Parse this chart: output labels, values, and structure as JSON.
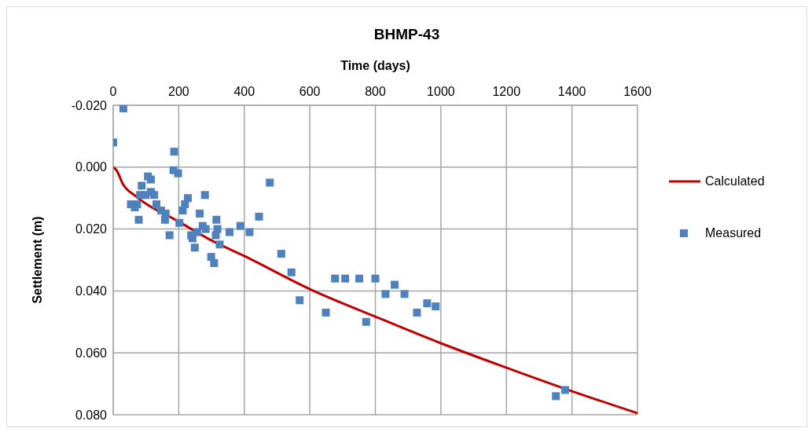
{
  "chart_data": {
    "type": "scatter",
    "title": "BHMP-43",
    "xlabel": "Time (days)",
    "ylabel": "Settlement (m)",
    "xlim": [
      0,
      1600
    ],
    "xticks": [
      0,
      200,
      400,
      600,
      800,
      1000,
      1200,
      1400,
      1600
    ],
    "ylim": [
      0.08,
      -0.02
    ],
    "yticks": [
      {
        "value": -0.02,
        "label": "-0.020"
      },
      {
        "value": 0,
        "label": "0.000"
      },
      {
        "value": 0.02,
        "label": "0.020"
      },
      {
        "value": 0.04,
        "label": "0.040"
      },
      {
        "value": 0.06,
        "label": "0.060"
      },
      {
        "value": 0.08,
        "label": "0.080"
      }
    ],
    "grid": true,
    "legend": "right",
    "series": [
      {
        "name": "Calculated",
        "type": "line",
        "color": "#c00000",
        "marker": "none",
        "line_style": "solid",
        "x": [
          0,
          10,
          30,
          70,
          200,
          300,
          400,
          600,
          800,
          1000,
          1200,
          1400,
          1600
        ],
        "values": [
          0,
          0.001,
          0.0055,
          0.0095,
          0.0176,
          0.0237,
          0.0287,
          0.0394,
          0.0483,
          0.0569,
          0.0648,
          0.0724,
          0.0795
        ]
      },
      {
        "name": "Measured",
        "type": "scatter",
        "color": "#4f81bd",
        "marker": "square",
        "x": [
          0,
          31,
          186,
          184,
          198,
          54,
          66,
          73,
          78,
          87,
          82,
          106,
          115,
          99,
          115,
          125,
          132,
          146,
          160,
          158,
          172,
          202,
          212,
          219,
          228,
          238,
          242,
          249,
          256,
          264,
          273,
          280,
          282,
          299,
          308,
          313,
          315,
          318,
          325,
          355,
          388,
          416,
          445,
          478,
          513,
          544,
          569,
          649,
          677,
          708,
          751,
          772,
          800,
          831,
          859,
          889,
          927,
          958,
          984,
          1351,
          1379
        ],
        "values": [
          -0.008,
          -0.019,
          -0.005,
          0.001,
          0.002,
          0.012,
          0.013,
          0.012,
          0.017,
          0.006,
          0.009,
          0.003,
          0.004,
          0.009,
          0.008,
          0.009,
          0.012,
          0.014,
          0.015,
          0.017,
          0.022,
          0.018,
          0.014,
          0.012,
          0.01,
          0.022,
          0.023,
          0.026,
          0.021,
          0.015,
          0.019,
          0.009,
          0.02,
          0.029,
          0.031,
          0.022,
          0.017,
          0.02,
          0.025,
          0.021,
          0.019,
          0.021,
          0.016,
          0.005,
          0.028,
          0.034,
          0.043,
          0.047,
          0.036,
          0.036,
          0.036,
          0.05,
          0.036,
          0.041,
          0.038,
          0.041,
          0.047,
          0.044,
          0.045,
          0.074,
          0.072
        ]
      }
    ]
  }
}
